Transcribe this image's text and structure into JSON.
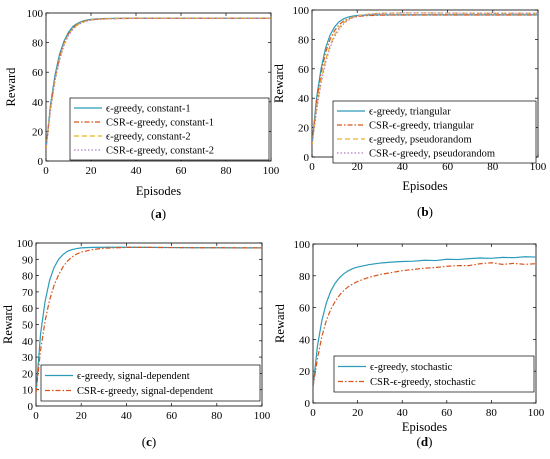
{
  "chart_data": [
    {
      "type": "line",
      "panel_label": "a",
      "xlabel": "Episodes",
      "ylabel": "Reward",
      "xlim": [
        0,
        100
      ],
      "ylim": [
        0,
        100
      ],
      "xticks": [
        0,
        20,
        40,
        60,
        80,
        100
      ],
      "yticks": [
        0,
        20,
        40,
        60,
        80,
        100
      ],
      "legend_position": "bottom-right",
      "series": [
        {
          "name": "ϵ-greedy, constant-1",
          "color": "#2a9bb8",
          "dash": "solid",
          "x": [
            0,
            2,
            4,
            6,
            8,
            10,
            12,
            14,
            16,
            18,
            20,
            25,
            30,
            40,
            50,
            60,
            70,
            80,
            90,
            100
          ],
          "y": [
            8,
            38,
            58,
            72,
            81,
            87,
            91,
            93,
            94.4,
            95.2,
            95.7,
            96.2,
            96.4,
            96.5,
            96.5,
            96.5,
            96.5,
            96.5,
            96.5,
            96.5
          ]
        },
        {
          "name": "CSR-ϵ-greedy, constant-1",
          "color": "#d9541a",
          "dash": "dashdot",
          "x": [
            0,
            2,
            4,
            6,
            8,
            10,
            12,
            14,
            16,
            18,
            20,
            25,
            30,
            40,
            50,
            60,
            70,
            80,
            90,
            100
          ],
          "y": [
            8,
            36,
            56,
            70,
            80,
            86,
            90,
            92.5,
            94,
            95,
            95.5,
            96,
            96.2,
            96.4,
            96.4,
            96.4,
            96.4,
            96.4,
            96.4,
            96.4
          ]
        },
        {
          "name": "ϵ-greedy, constant-2",
          "color": "#e6b422",
          "dash": "dashed",
          "x": [
            0,
            2,
            4,
            6,
            8,
            10,
            12,
            14,
            16,
            18,
            20,
            25,
            30,
            40,
            50,
            60,
            70,
            80,
            90,
            100
          ],
          "y": [
            8,
            35,
            55,
            69,
            79,
            85.5,
            89.5,
            92,
            93.6,
            94.6,
            95.3,
            96,
            96.3,
            96.5,
            96.5,
            96.5,
            96.5,
            96.5,
            96.5,
            96.5
          ]
        },
        {
          "name": "CSR-ϵ-greedy, constant-2",
          "color": "#b07cc6",
          "dash": "dotted",
          "x": [
            0,
            2,
            4,
            6,
            8,
            10,
            12,
            14,
            16,
            18,
            20,
            25,
            30,
            40,
            50,
            60,
            70,
            80,
            90,
            100
          ],
          "y": [
            8,
            34,
            54,
            68,
            78,
            85,
            89,
            91.8,
            93.4,
            94.5,
            95.2,
            95.9,
            96.2,
            96.4,
            96.4,
            96.4,
            96.4,
            96.4,
            96.4,
            96.4
          ]
        }
      ]
    },
    {
      "type": "line",
      "panel_label": "b",
      "xlabel": "Episodes",
      "ylabel": "Reward",
      "xlim": [
        0,
        100
      ],
      "ylim": [
        0,
        100
      ],
      "xticks": [
        0,
        20,
        40,
        60,
        80,
        100
      ],
      "yticks": [
        0,
        20,
        40,
        60,
        80,
        100
      ],
      "legend_position": "bottom-right",
      "series": [
        {
          "name": "ϵ-greedy, triangular",
          "color": "#2a9bb8",
          "dash": "solid",
          "x": [
            0,
            2,
            4,
            6,
            8,
            10,
            12,
            14,
            16,
            18,
            20,
            25,
            30,
            40,
            50,
            60,
            70,
            80,
            90,
            100
          ],
          "y": [
            8,
            40,
            60,
            74,
            83,
            88.5,
            92,
            94,
            95.2,
            95.9,
            96.3,
            96.6,
            96.7,
            96.7,
            96.7,
            96.7,
            96.7,
            96.7,
            96.7,
            96.7
          ]
        },
        {
          "name": "CSR-ϵ-greedy, triangular",
          "color": "#d9541a",
          "dash": "dashdot",
          "x": [
            0,
            2,
            4,
            6,
            8,
            10,
            12,
            14,
            16,
            18,
            20,
            25,
            30,
            40,
            50,
            60,
            70,
            80,
            90,
            100
          ],
          "y": [
            8,
            37,
            57,
            71,
            80,
            86,
            90,
            92.5,
            94,
            95,
            95.6,
            96.2,
            96.5,
            96.6,
            96.6,
            96.6,
            96.6,
            96.6,
            96.6,
            96.6
          ]
        },
        {
          "name": "ϵ-greedy, pseudorandom",
          "color": "#e6b422",
          "dash": "dashed",
          "x": [
            0,
            2,
            4,
            6,
            8,
            10,
            12,
            14,
            16,
            18,
            20,
            25,
            30,
            40,
            50,
            60,
            70,
            80,
            90,
            100
          ],
          "y": [
            8,
            33,
            52,
            66,
            76,
            83,
            88,
            91.3,
            93.5,
            95,
            96,
            97.2,
            97.8,
            98,
            98,
            97.9,
            97.8,
            97.8,
            97.8,
            97.8
          ]
        },
        {
          "name": "CSR-ϵ-greedy, pseudorandom",
          "color": "#b07cc6",
          "dash": "dotted",
          "x": [
            0,
            2,
            4,
            6,
            8,
            10,
            12,
            14,
            16,
            18,
            20,
            25,
            30,
            40,
            50,
            60,
            70,
            80,
            90,
            100
          ],
          "y": [
            8,
            31,
            50,
            64,
            74.5,
            82,
            87,
            90.6,
            93,
            94.7,
            95.8,
            97.1,
            97.7,
            98,
            98,
            97.9,
            97.8,
            97.8,
            97.8,
            97.8
          ]
        }
      ]
    },
    {
      "type": "line",
      "panel_label": "c",
      "xlabel": "",
      "ylabel": "Reward",
      "xlim": [
        0,
        100
      ],
      "ylim": [
        0,
        100
      ],
      "xticks": [
        0,
        20,
        40,
        60,
        80,
        100
      ],
      "yticks": [
        0,
        10,
        20,
        30,
        40,
        50,
        60,
        70,
        80,
        90,
        100
      ],
      "legend_position": "bottom-right",
      "series": [
        {
          "name": "ϵ-greedy, signal-dependent",
          "color": "#2a9bb8",
          "dash": "solid",
          "x": [
            0,
            2,
            4,
            6,
            8,
            10,
            12,
            14,
            16,
            18,
            20,
            25,
            30,
            40,
            50,
            60,
            70,
            80,
            90,
            100
          ],
          "y": [
            8,
            44,
            64,
            77,
            85,
            90,
            93,
            95,
            96,
            96.6,
            97,
            97.3,
            97.4,
            97.4,
            97.3,
            97.2,
            97.1,
            97.1,
            97,
            97
          ]
        },
        {
          "name": "CSR-ϵ-greedy, signal-dependent",
          "color": "#d9541a",
          "dash": "dashdot",
          "x": [
            0,
            2,
            4,
            6,
            8,
            10,
            12,
            14,
            16,
            18,
            20,
            25,
            30,
            40,
            50,
            60,
            70,
            80,
            90,
            100
          ],
          "y": [
            8,
            34,
            52,
            65,
            74,
            80.5,
            85.5,
            89,
            91.5,
            93.2,
            94.4,
            96,
            96.8,
            97.3,
            97.3,
            97.2,
            97.1,
            97.1,
            97,
            97
          ]
        }
      ]
    },
    {
      "type": "line",
      "panel_label": "d",
      "xlabel": "Episodes",
      "ylabel": "Reward",
      "xlim": [
        0,
        100
      ],
      "ylim": [
        0,
        100
      ],
      "xticks": [
        0,
        20,
        40,
        60,
        80,
        100
      ],
      "yticks": [
        0,
        20,
        40,
        60,
        80,
        100
      ],
      "legend_position": "bottom-right",
      "series": [
        {
          "name": "ϵ-greedy, stochastic",
          "color": "#2a9bb8",
          "dash": "solid",
          "x": [
            0,
            2,
            4,
            6,
            8,
            10,
            12,
            14,
            16,
            18,
            20,
            25,
            30,
            35,
            40,
            45,
            50,
            55,
            60,
            65,
            70,
            75,
            80,
            85,
            90,
            95,
            100
          ],
          "y": [
            10,
            36,
            52,
            63,
            70.5,
            75.5,
            79,
            81.5,
            83.3,
            84.6,
            85.5,
            87,
            88,
            88.6,
            89,
            89.2,
            89.8,
            89.6,
            90.4,
            90.2,
            90.8,
            91.2,
            91,
            91.6,
            91.4,
            92,
            91.8
          ]
        },
        {
          "name": "CSR-ϵ-greedy, stochastic",
          "color": "#d9541a",
          "dash": "dashdot",
          "x": [
            0,
            2,
            4,
            6,
            8,
            10,
            12,
            14,
            16,
            18,
            20,
            25,
            30,
            35,
            40,
            45,
            50,
            55,
            60,
            65,
            70,
            75,
            80,
            85,
            90,
            95,
            100
          ],
          "y": [
            10,
            28,
            42,
            52,
            59,
            64,
            68,
            71,
            73.3,
            75,
            76.5,
            79,
            80.8,
            82,
            83.2,
            84,
            84.8,
            85.2,
            86,
            86.4,
            86.4,
            87.6,
            88.2,
            87.2,
            87.8,
            87.2,
            87.6
          ]
        }
      ]
    }
  ]
}
